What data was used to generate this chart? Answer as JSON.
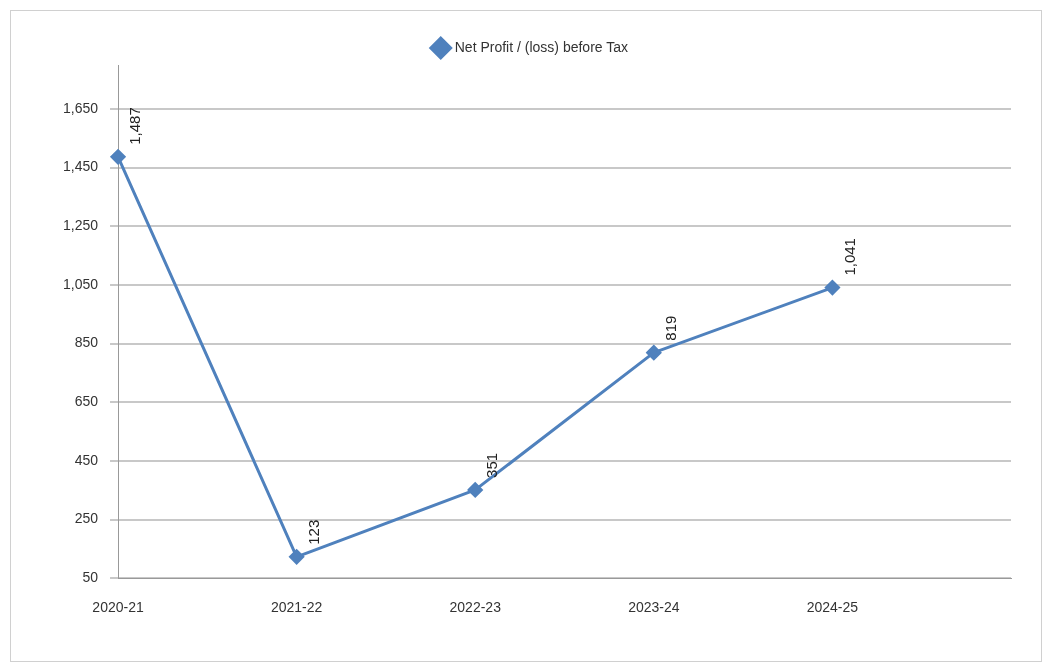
{
  "chart_data": {
    "type": "line",
    "categories": [
      "2020-21",
      "2021-22",
      "2022-23",
      "2023-24",
      "2024-25",
      null
    ],
    "series": [
      {
        "name": "Net Profit / (loss) before Tax",
        "color": "#4f81bd",
        "values": [
          1487,
          123,
          351,
          819,
          1041,
          null
        ]
      }
    ],
    "ylim": [
      50,
      1800
    ],
    "yticks": [
      50,
      250,
      450,
      650,
      850,
      {
        "value": 1050,
        "label": "1,050"
      },
      {
        "value": 1250,
        "label": "1,250"
      },
      {
        "value": 1450,
        "label": "1,450"
      },
      {
        "value": 1650,
        "label": "1,650"
      }
    ],
    "value_labels": [
      "1,487",
      "123",
      "351",
      "819",
      "1,041",
      null
    ],
    "grid": "y",
    "legend": "top",
    "marker": "diamond"
  }
}
